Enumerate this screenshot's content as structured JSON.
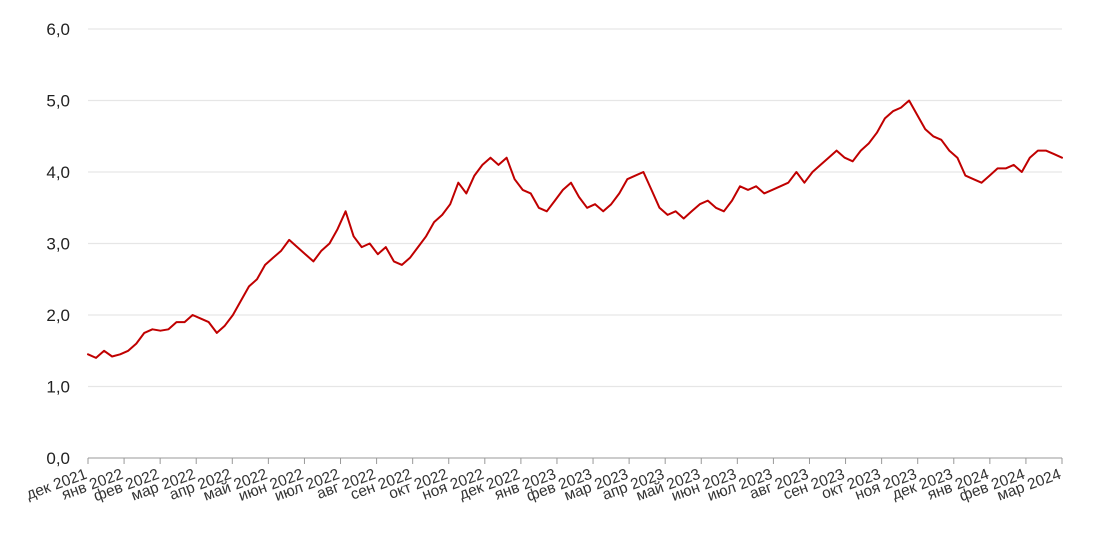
{
  "colors": {
    "line": "#c00000",
    "grid": "#e6e6e6",
    "axis": "#999999",
    "text": "#222222"
  },
  "chart_data": {
    "type": "line",
    "title": "",
    "xlabel": "",
    "ylabel": "",
    "grid": true,
    "legend": "none",
    "ylim": [
      0,
      6
    ],
    "y_ticks": [
      "0,0",
      "1,0",
      "2,0",
      "3,0",
      "4,0",
      "5,0",
      "6,0"
    ],
    "x_ticks": [
      "дек 2021",
      "янв 2022",
      "фев 2022",
      "мар 2022",
      "апр 2022",
      "май 2022",
      "июн 2022",
      "июл 2022",
      "авг 2022",
      "сен 2022",
      "окт 2022",
      "ноя 2022",
      "дек 2022",
      "янв 2023",
      "фев 2023",
      "мар 2023",
      "апр 2023",
      "май 2023",
      "июн 2023",
      "июл 2023",
      "авг 2023",
      "сен 2023",
      "окт 2023",
      "ноя 2023",
      "дек 2023",
      "янв 2024",
      "фев 2024",
      "мар 2024"
    ],
    "series": [
      {
        "x": [
          "2021-12-01",
          "2021-12-08",
          "2021-12-15",
          "2021-12-22",
          "2021-12-29",
          "2022-01-05",
          "2022-01-12",
          "2022-01-19",
          "2022-01-26",
          "2022-02-02",
          "2022-02-09",
          "2022-02-16",
          "2022-02-23",
          "2022-03-02",
          "2022-03-09",
          "2022-03-16",
          "2022-03-23",
          "2022-03-30",
          "2022-04-06",
          "2022-04-13",
          "2022-04-20",
          "2022-04-27",
          "2022-05-04",
          "2022-05-11",
          "2022-05-18",
          "2022-05-25",
          "2022-06-01",
          "2022-06-08",
          "2022-06-15",
          "2022-06-22",
          "2022-06-29",
          "2022-07-06",
          "2022-07-13",
          "2022-07-20",
          "2022-07-27",
          "2022-08-03",
          "2022-08-10",
          "2022-08-17",
          "2022-08-24",
          "2022-08-31",
          "2022-09-07",
          "2022-09-14",
          "2022-09-21",
          "2022-09-28",
          "2022-10-05",
          "2022-10-12",
          "2022-10-19",
          "2022-10-26",
          "2022-11-02",
          "2022-11-09",
          "2022-11-16",
          "2022-11-23",
          "2022-11-30",
          "2022-12-07",
          "2022-12-14",
          "2022-12-21",
          "2022-12-28",
          "2023-01-04",
          "2023-01-11",
          "2023-01-18",
          "2023-01-25",
          "2023-02-01",
          "2023-02-08",
          "2023-02-15",
          "2023-02-22",
          "2023-03-01",
          "2023-03-08",
          "2023-03-15",
          "2023-03-22",
          "2023-03-29",
          "2023-04-05",
          "2023-04-12",
          "2023-04-19",
          "2023-04-26",
          "2023-05-03",
          "2023-05-10",
          "2023-05-17",
          "2023-05-24",
          "2023-05-31",
          "2023-06-07",
          "2023-06-14",
          "2023-06-21",
          "2023-06-28",
          "2023-07-05",
          "2023-07-12",
          "2023-07-19",
          "2023-07-26",
          "2023-08-02",
          "2023-08-09",
          "2023-08-16",
          "2023-08-23",
          "2023-08-30",
          "2023-09-06",
          "2023-09-13",
          "2023-09-20",
          "2023-09-27",
          "2023-10-04",
          "2023-10-11",
          "2023-10-18",
          "2023-10-25",
          "2023-11-01",
          "2023-11-08",
          "2023-11-15",
          "2023-11-22",
          "2023-11-29",
          "2023-12-06",
          "2023-12-13",
          "2023-12-20",
          "2023-12-27",
          "2024-01-03",
          "2024-01-10",
          "2024-01-17",
          "2024-01-24",
          "2024-01-31",
          "2024-02-07",
          "2024-02-14",
          "2024-02-21",
          "2024-02-28",
          "2024-03-06",
          "2024-03-13",
          "2024-03-20",
          "2024-03-27"
        ],
        "values": [
          1.45,
          1.4,
          1.5,
          1.42,
          1.45,
          1.5,
          1.6,
          1.75,
          1.8,
          1.78,
          1.8,
          1.9,
          1.9,
          2.0,
          1.95,
          1.9,
          1.75,
          1.85,
          2.0,
          2.2,
          2.4,
          2.5,
          2.7,
          2.8,
          2.9,
          3.05,
          2.95,
          2.85,
          2.75,
          2.9,
          3.0,
          3.2,
          3.45,
          3.1,
          2.95,
          3.0,
          2.85,
          2.95,
          2.75,
          2.7,
          2.8,
          2.95,
          3.1,
          3.3,
          3.4,
          3.55,
          3.85,
          3.7,
          3.95,
          4.1,
          4.2,
          4.1,
          4.2,
          3.9,
          3.75,
          3.7,
          3.5,
          3.45,
          3.6,
          3.75,
          3.85,
          3.65,
          3.5,
          3.55,
          3.45,
          3.55,
          3.7,
          3.9,
          3.95,
          4.0,
          3.75,
          3.5,
          3.4,
          3.45,
          3.35,
          3.45,
          3.55,
          3.6,
          3.5,
          3.45,
          3.6,
          3.8,
          3.75,
          3.8,
          3.7,
          3.75,
          3.8,
          3.85,
          4.0,
          3.85,
          4.0,
          4.1,
          4.2,
          4.3,
          4.2,
          4.15,
          4.3,
          4.4,
          4.55,
          4.75,
          4.85,
          4.9,
          5.0,
          4.8,
          4.6,
          4.5,
          4.45,
          4.3,
          4.2,
          3.95,
          3.9,
          3.85,
          3.95,
          4.05,
          4.05,
          4.1,
          4.0,
          4.2,
          4.3,
          4.3,
          4.25,
          4.2
        ]
      }
    ]
  }
}
